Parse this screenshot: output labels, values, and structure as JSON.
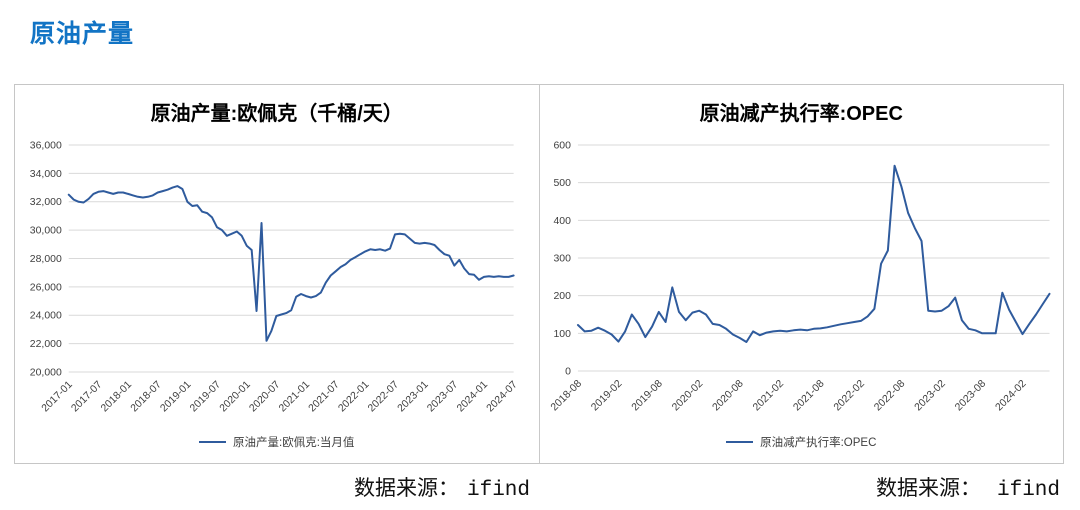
{
  "page_title": "原油产量",
  "colors": {
    "header_blue": "#1274c5",
    "series_line_blue": "#2f5b9d",
    "gridline_gray": "#d9d9d9",
    "box_border_gray": "#c6c6c6",
    "axis_text_gray": "#404040"
  },
  "source_left": {
    "label": "数据来源：",
    "value": "ifind"
  },
  "source_right": {
    "label": "数据来源：",
    "value": "ifind"
  },
  "chart_data": [
    {
      "type": "line",
      "title": "原油产量:欧佩克（千桶/天）",
      "legend": "原油产量:欧佩克:当月值",
      "ylim": [
        20000,
        36000
      ],
      "y_tick_labels": [
        "36,000",
        "34,000",
        "32,000",
        "30,000",
        "28,000",
        "26,000",
        "24,000",
        "22,000",
        "20,000"
      ],
      "x_tick_labels": [
        "2017-01",
        "2017-07",
        "2018-01",
        "2018-07",
        "2019-01",
        "2019-07",
        "2020-01",
        "2020-07",
        "2021-01",
        "2021-07",
        "2022-01",
        "2022-07",
        "2023-01",
        "2023-07",
        "2024-01",
        "2024-07"
      ],
      "x_tick_step_months": 6,
      "x_months_span": 90,
      "x_monthly_start": "2017-01",
      "grid": "horizontal",
      "legend_position": "bottom",
      "values": [
        32500,
        32150,
        32000,
        31950,
        32200,
        32550,
        32700,
        32750,
        32650,
        32550,
        32650,
        32650,
        32550,
        32450,
        32350,
        32300,
        32350,
        32450,
        32650,
        32750,
        32850,
        33000,
        33100,
        32900,
        32000,
        31700,
        31750,
        31300,
        31200,
        30900,
        30200,
        30000,
        29600,
        29750,
        29900,
        29600,
        28900,
        28600,
        24300,
        30500,
        22200,
        22900,
        23950,
        24050,
        24150,
        24350,
        25300,
        25500,
        25350,
        25250,
        25350,
        25600,
        26300,
        26800,
        27100,
        27400,
        27600,
        27900,
        28100,
        28300,
        28500,
        28650,
        28600,
        28650,
        28550,
        28700,
        29700,
        29750,
        29700,
        29400,
        29100,
        29050,
        29100,
        29050,
        28950,
        28600,
        28300,
        28200,
        27500,
        27900,
        27300,
        26900,
        26850,
        26500,
        26700,
        26750,
        26700,
        26750,
        26700,
        26700,
        26800
      ]
    },
    {
      "type": "line",
      "title": "原油减产执行率:OPEC",
      "legend": "原油减产执行率:OPEC",
      "ylim": [
        0,
        600
      ],
      "y_tick_labels": [
        "600",
        "500",
        "400",
        "300",
        "200",
        "100",
        "0"
      ],
      "x_tick_labels": [
        "2018-08",
        "2019-02",
        "2019-08",
        "2020-02",
        "2020-08",
        "2021-02",
        "2021-08",
        "2022-02",
        "2022-08",
        "2023-02",
        "2023-08",
        "2024-02"
      ],
      "x_tick_step_months": 6,
      "x_months_span": 70,
      "x_monthly_start": "2018-08",
      "grid": "horizontal",
      "legend_position": "bottom",
      "values": [
        122,
        105,
        107,
        115,
        107,
        97,
        78,
        105,
        150,
        125,
        90,
        118,
        157,
        130,
        222,
        157,
        135,
        155,
        160,
        150,
        125,
        122,
        112,
        97,
        88,
        77,
        105,
        95,
        102,
        105,
        107,
        105,
        108,
        110,
        108,
        112,
        113,
        116,
        120,
        124,
        127,
        130,
        133,
        145,
        165,
        285,
        320,
        545,
        490,
        420,
        380,
        345,
        160,
        158,
        160,
        172,
        195,
        135,
        112,
        108,
        100,
        100,
        100,
        208,
        163,
        130,
        98,
        125,
        150,
        178,
        205
      ]
    }
  ]
}
